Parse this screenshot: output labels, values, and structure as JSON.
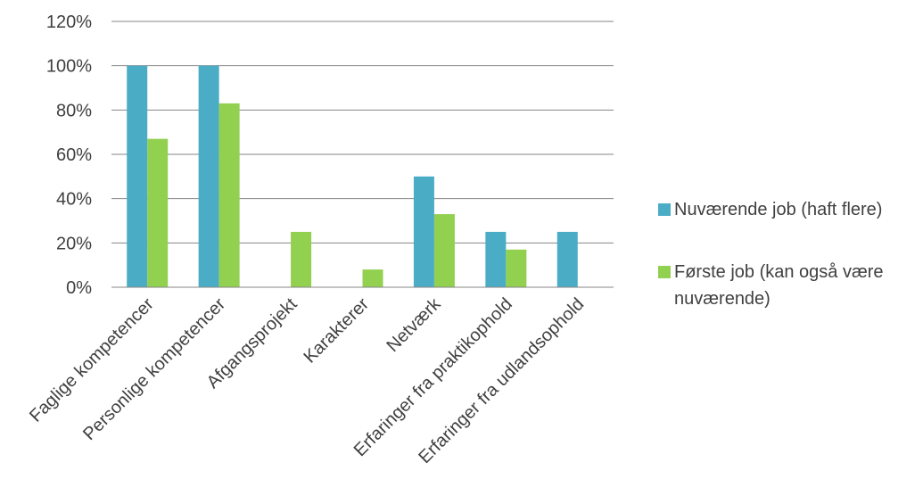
{
  "chart_data": {
    "type": "bar",
    "categories": [
      "Faglige kompetencer",
      "Personlige kompetencer",
      "Afgangsprojekt",
      "Karakterer",
      "Netværk",
      "Erfaringer fra praktikophold",
      "Erfaringer fra udlandsophold"
    ],
    "series": [
      {
        "name": "Nuværende job (haft flere)",
        "color": "#4bacc6",
        "values": [
          100,
          100,
          0,
          0,
          50,
          25,
          25
        ]
      },
      {
        "name": "Første job (kan også være nuværende)",
        "color": "#92d050",
        "values": [
          67,
          83,
          25,
          8,
          33,
          17,
          0
        ]
      }
    ],
    "y_ticks": [
      "0%",
      "20%",
      "40%",
      "60%",
      "80%",
      "100%",
      "120%"
    ],
    "ylim": [
      0,
      120
    ],
    "grid": true,
    "legend_position": "right",
    "title": "",
    "xlabel": "",
    "ylabel": ""
  }
}
